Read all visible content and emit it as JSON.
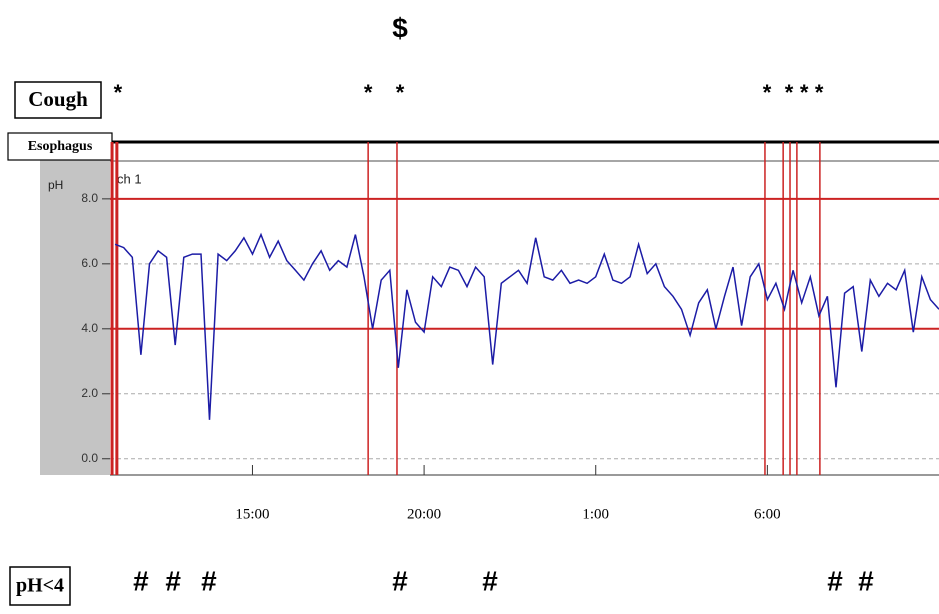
{
  "chart_data": {
    "type": "line",
    "ylabel": "pH",
    "row_labels": {
      "cough": "Cough",
      "channel": "Esophagus",
      "acid": "pH<4"
    },
    "x": [
      11,
      11.25,
      11.5,
      11.75,
      12,
      12.25,
      12.5,
      12.75,
      13,
      13.25,
      13.5,
      13.75,
      14,
      14.25,
      14.5,
      14.75,
      15,
      15.25,
      15.5,
      15.75,
      16,
      16.25,
      16.5,
      16.75,
      17,
      17.25,
      17.5,
      17.75,
      18,
      18.25,
      18.5,
      18.75,
      19,
      19.25,
      19.5,
      19.75,
      20,
      20.25,
      20.5,
      20.75,
      21,
      21.25,
      21.5,
      21.75,
      22,
      22.25,
      22.5,
      22.75,
      23,
      23.25,
      23.5,
      23.75,
      24,
      24.25,
      24.5,
      24.75,
      25,
      25.25,
      25.5,
      25.75,
      26,
      26.25,
      26.5,
      26.75,
      27,
      27.25,
      27.5,
      27.75,
      28,
      28.25,
      28.5,
      28.75,
      29,
      29.25,
      29.5,
      29.75,
      30,
      30.25,
      30.5,
      30.75,
      31,
      31.25,
      31.5,
      31.75,
      32,
      32.25,
      32.5,
      32.75,
      33,
      33.25,
      33.5,
      33.75,
      34,
      34.25,
      34.5,
      34.75,
      35
    ],
    "series": [
      {
        "name": "ch 1",
        "color": "#1c1ca6",
        "values": [
          6.6,
          6.5,
          6.2,
          3.2,
          6.0,
          6.4,
          6.2,
          3.5,
          6.2,
          6.3,
          6.3,
          1.2,
          6.3,
          6.1,
          6.4,
          6.8,
          6.3,
          6.9,
          6.2,
          6.7,
          6.1,
          5.8,
          5.5,
          6.0,
          6.4,
          5.8,
          6.1,
          5.9,
          6.9,
          5.6,
          4.0,
          5.5,
          5.8,
          2.8,
          5.2,
          4.2,
          3.9,
          5.6,
          5.3,
          5.9,
          5.8,
          5.3,
          5.9,
          5.6,
          2.9,
          5.4,
          5.6,
          5.8,
          5.4,
          6.8,
          5.6,
          5.5,
          5.8,
          5.4,
          5.5,
          5.4,
          5.6,
          6.3,
          5.5,
          5.4,
          5.6,
          6.6,
          5.7,
          6.0,
          5.3,
          5.0,
          4.6,
          3.8,
          4.8,
          5.2,
          4.0,
          5.0,
          5.9,
          4.1,
          5.6,
          6.0,
          4.9,
          5.4,
          4.6,
          5.8,
          4.8,
          5.6,
          4.4,
          5.0,
          2.2,
          5.1,
          5.3,
          3.3,
          5.5,
          5.0,
          5.4,
          5.2,
          5.8,
          3.9,
          5.6,
          4.9,
          4.6
        ]
      }
    ],
    "xlim": [
      10.85,
      35.0
    ],
    "xticks": [
      {
        "value": 15,
        "label": "15:00"
      },
      {
        "value": 20,
        "label": "20:00"
      },
      {
        "value": 25,
        "label": "1:00"
      },
      {
        "value": 30,
        "label": "6:00"
      }
    ],
    "ylim": [
      -0.5,
      9.75
    ],
    "yticks": [
      {
        "value": 8,
        "label": "8.0"
      },
      {
        "value": 6,
        "label": "6.0"
      },
      {
        "value": 4,
        "label": "4.0"
      },
      {
        "value": 2,
        "label": "2.0"
      },
      {
        "value": 0,
        "label": "0.0"
      }
    ],
    "grid": true,
    "reference_lines": {
      "color": "#cc2222",
      "values": [
        8,
        4
      ]
    },
    "event_lines": {
      "color": "#cc2222",
      "x": [
        10.91,
        11.05,
        18.37,
        19.21,
        29.93,
        30.46,
        30.66,
        30.86,
        31.53
      ]
    },
    "cough_marks": {
      "label": "*",
      "x": [
        11.08,
        18.37,
        19.3,
        29.99,
        30.63,
        31.07,
        31.51
      ]
    },
    "acid_marks": {
      "label": "#",
      "x": [
        11.75,
        12.69,
        13.73,
        19.3,
        21.92,
        31.97,
        32.87
      ]
    },
    "top_marks": {
      "label": "$",
      "x": [
        19.3
      ]
    }
  }
}
